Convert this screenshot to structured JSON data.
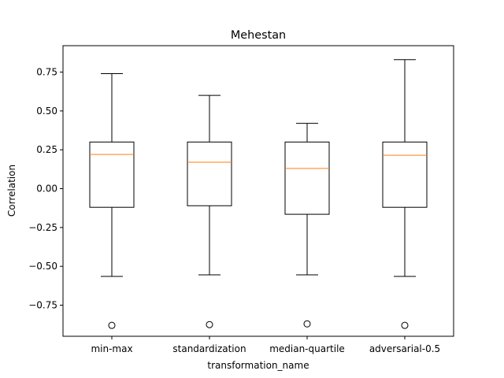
{
  "chart_data": {
    "type": "boxplot",
    "title": "Mehestan",
    "xlabel": "transformation_name",
    "ylabel": "Correlation",
    "ylim": [
      -0.95,
      0.92
    ],
    "yticks": [
      -0.75,
      -0.5,
      -0.25,
      0.0,
      0.25,
      0.5,
      0.75
    ],
    "ytick_labels": [
      "−0.75",
      "−0.50",
      "−0.25",
      "0.00",
      "0.25",
      "0.50",
      "0.75"
    ],
    "grid": false,
    "categories": [
      "min-max",
      "standardization",
      "median-quartile",
      "adversarial-0.5"
    ],
    "boxes": [
      {
        "whisker_low": -0.565,
        "q1": -0.12,
        "median": 0.22,
        "q3": 0.3,
        "whisker_high": 0.74,
        "outliers": [
          -0.88
        ]
      },
      {
        "whisker_low": -0.555,
        "q1": -0.11,
        "median": 0.17,
        "q3": 0.3,
        "whisker_high": 0.6,
        "outliers": [
          -0.875
        ]
      },
      {
        "whisker_low": -0.555,
        "q1": -0.165,
        "median": 0.13,
        "q3": 0.3,
        "whisker_high": 0.42,
        "outliers": [
          -0.87
        ]
      },
      {
        "whisker_low": -0.565,
        "q1": -0.12,
        "median": 0.215,
        "q3": 0.3,
        "whisker_high": 0.83,
        "outliers": [
          -0.88
        ]
      }
    ],
    "colors": {
      "box": "#000000",
      "median": "#ff7f0e",
      "outlier": "#000000"
    }
  }
}
